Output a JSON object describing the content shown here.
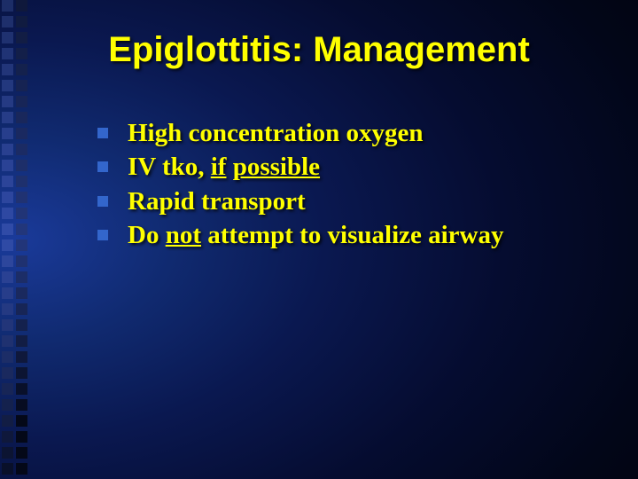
{
  "slide": {
    "title": "Epiglottitis: Management",
    "title_color": "#ffff00",
    "title_fontsize": 40,
    "title_fontfamily": "Arial",
    "background": {
      "type": "radial-gradient",
      "center": "left-center",
      "colors": [
        "#1a3a9a",
        "#102a70",
        "#0a1850",
        "#050c30",
        "#020618",
        "#000004"
      ]
    },
    "left_decoration": {
      "type": "two-column-squares",
      "square_size": 13,
      "square_spacing": 5,
      "columns": 2,
      "rows": 30,
      "color_scale_top": "#3a5ac8",
      "color_scale_bottom": "#040818"
    },
    "bullets": {
      "marker_shape": "square",
      "marker_size": 12,
      "marker_color": "#3366cc",
      "text_color": "#ffff00",
      "text_fontsize": 29,
      "text_fontfamily": "Times New Roman",
      "text_fontweight": "bold",
      "items": [
        {
          "segments": [
            {
              "t": "High concentration oxygen"
            }
          ]
        },
        {
          "segments": [
            {
              "t": "IV tko, "
            },
            {
              "t": "if",
              "u": true
            },
            {
              "t": " "
            },
            {
              "t": "possible",
              "u": true
            }
          ]
        },
        {
          "segments": [
            {
              "t": "Rapid transport"
            }
          ]
        },
        {
          "segments": [
            {
              "t": "Do "
            },
            {
              "t": "not",
              "u": true
            },
            {
              "t": " attempt to visualize airway"
            }
          ]
        }
      ]
    }
  }
}
